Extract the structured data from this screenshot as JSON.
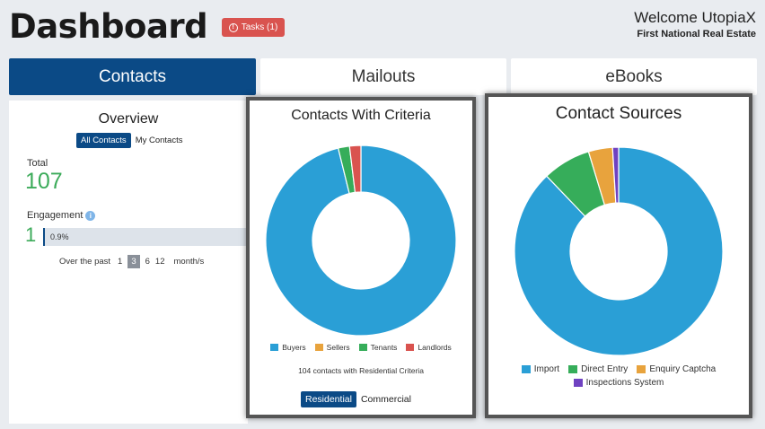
{
  "header": {
    "title": "Dashboard",
    "tasks_label": "Tasks (1)",
    "welcome": "Welcome UtopiaX",
    "agency": "First National Real Estate"
  },
  "tabs": [
    {
      "label": "Contacts",
      "active": true
    },
    {
      "label": "Mailouts",
      "active": false
    },
    {
      "label": "eBooks",
      "active": false
    }
  ],
  "overview": {
    "title": "Overview",
    "toggle": [
      "All Contacts",
      "My Contacts"
    ],
    "total_label": "Total",
    "total_value": "107",
    "engagement_label": "Engagement",
    "engagement_value": "1",
    "engagement_percent": "0.9%",
    "past_label": "Over the past",
    "periods": [
      "1",
      "3",
      "6",
      "12"
    ],
    "selected_period": "3",
    "period_unit": "month/s"
  },
  "criteria": {
    "note": "104 contacts with Residential Criteria",
    "toggle": [
      "Residential",
      "Commercial"
    ]
  },
  "colors": {
    "brand": "#0b4a86",
    "blue": "#2a9fd6",
    "orange": "#e8a33d",
    "green": "#36ad5a",
    "red": "#d9534f",
    "purple": "#6f42c1"
  },
  "chart_data": [
    {
      "type": "pie",
      "title": "Contacts With Criteria",
      "categories": [
        "Buyers",
        "Sellers",
        "Tenants",
        "Landlords"
      ],
      "values": [
        100,
        0,
        2,
        2
      ],
      "colors": [
        "#2a9fd6",
        "#e8a33d",
        "#36ad5a",
        "#d9534f"
      ],
      "legend": "bottom"
    },
    {
      "type": "pie",
      "title": "Contact Sources",
      "categories": [
        "Import",
        "Direct Entry",
        "Enquiry Captcha",
        "Inspections System"
      ],
      "values": [
        94,
        8,
        4,
        1
      ],
      "colors": [
        "#2a9fd6",
        "#36ad5a",
        "#e8a33d",
        "#6f42c1"
      ],
      "legend": "bottom"
    }
  ]
}
